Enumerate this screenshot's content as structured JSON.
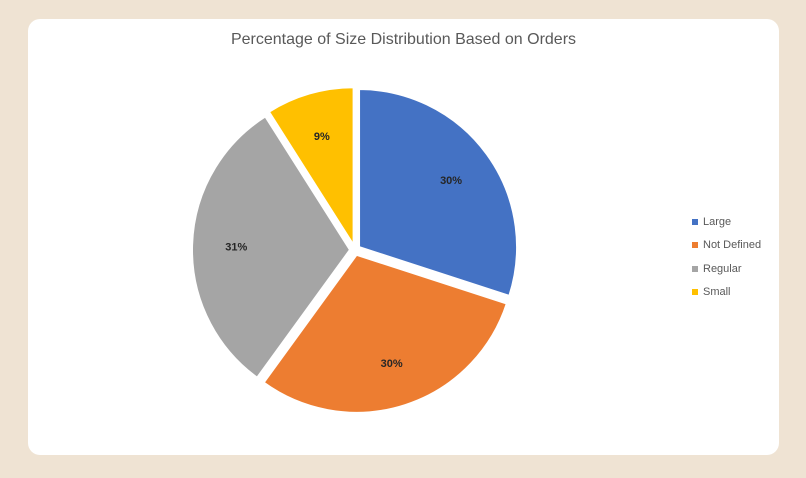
{
  "chart_data": {
    "type": "pie",
    "title": "Percentage of Size Distribution Based on Orders",
    "categories": [
      "Large",
      "Not Defined",
      "Regular",
      "Small"
    ],
    "values": [
      30,
      30,
      31,
      9
    ],
    "data_labels": [
      "30%",
      "30%",
      "31%",
      "9%"
    ],
    "colors": [
      "#4472c4",
      "#ed7d31",
      "#a5a5a5",
      "#ffc000"
    ],
    "exploded": true,
    "legend_position": "right"
  }
}
